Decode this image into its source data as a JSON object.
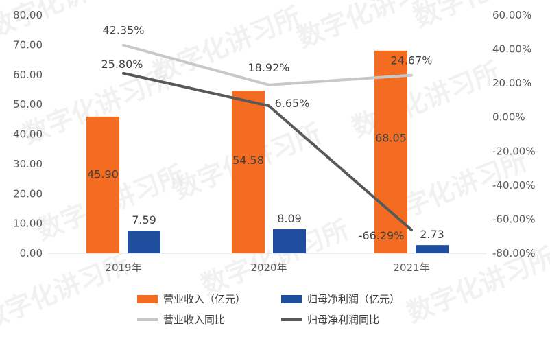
{
  "watermark": "数字化讲习所",
  "chart_data": {
    "type": "bar+line",
    "categories": [
      "2019年",
      "2020年",
      "2021年"
    ],
    "left_axis": {
      "min": 0,
      "max": 80,
      "step": 10,
      "ticks": [
        "0.00",
        "10.00",
        "20.00",
        "30.00",
        "40.00",
        "50.00",
        "60.00",
        "70.00",
        "80.00"
      ]
    },
    "right_axis": {
      "min": -80,
      "max": 60,
      "step": 20,
      "ticks": [
        "-80.00%",
        "-60.00%",
        "-40.00%",
        "-20.00%",
        "0.00%",
        "20.00%",
        "40.00%",
        "60.00%"
      ]
    },
    "bar_series": [
      {
        "name": "营业收入（亿元）",
        "color": "#f36c21",
        "values": [
          45.9,
          54.58,
          68.05
        ],
        "labels": [
          "45.90",
          "54.58",
          "68.05"
        ]
      },
      {
        "name": "归母净利润（亿元）",
        "color": "#1f4e9e",
        "values": [
          7.59,
          8.09,
          2.73
        ],
        "labels": [
          "7.59",
          "8.09",
          "2.73"
        ]
      }
    ],
    "line_series": [
      {
        "name": "营业收入同比",
        "color": "#c8c8c8",
        "values": [
          42.35,
          18.92,
          24.67
        ],
        "labels": [
          "42.35%",
          "18.92%",
          "24.67%"
        ]
      },
      {
        "name": "归母净利润同比",
        "color": "#595959",
        "values": [
          25.8,
          6.65,
          -66.29
        ],
        "labels": [
          "25.80%",
          "6.65%",
          "-66.29%"
        ]
      }
    ],
    "legend_position": "bottom",
    "grid": false
  }
}
